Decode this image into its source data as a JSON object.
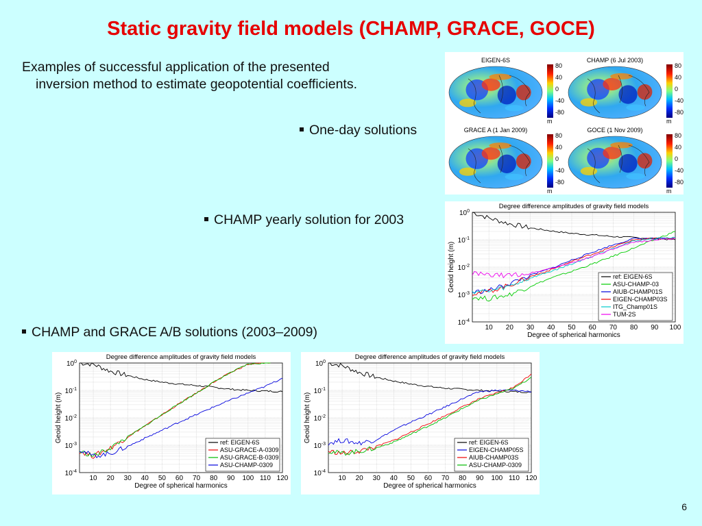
{
  "slide": {
    "title": "Static gravity field models (CHAMP, GRACE, GOCE)",
    "intro_line1": "Examples of successful application of the presented",
    "intro_line2": "inversion method to estimate geopotential coefficients.",
    "bullet_one_day": "One-day solutions",
    "bullet_yearly": "CHAMP yearly solution for 2003",
    "bullet_champ_grace": "CHAMP and GRACE A/B solutions (2003–2009)",
    "page_number": "6"
  },
  "maps": {
    "titles": [
      "EIGEN-6S",
      "CHAMP (6 Jul 2003)",
      "GRACE A (1 Jan 2009)",
      "GOCE (1 Nov 2009)"
    ],
    "colorbar_ticks": [
      "80",
      "40",
      "0",
      "-40",
      "-80"
    ],
    "colorbar_unit": "m"
  },
  "chart_data": [
    {
      "type": "line",
      "title": "Degree difference amplitudes of gravity field models",
      "xlabel": "Degree of spherical harmonics",
      "ylabel": "Geoid height (m)",
      "xlim": [
        2,
        100
      ],
      "ylim_log10": [
        -4,
        0
      ],
      "log_y": true,
      "x_ticks": [
        10,
        20,
        30,
        40,
        50,
        60,
        70,
        80,
        90,
        100
      ],
      "y_tick_exponents": [
        0,
        -1,
        -2,
        -3,
        -4
      ],
      "y_tick_base": "10",
      "legend_position": "lower-right",
      "grid": true,
      "series": [
        {
          "name": "ref: EIGEN-6S",
          "color": "#000000",
          "x": [
            2,
            10,
            20,
            30,
            40,
            50,
            60,
            70,
            80,
            90,
            100
          ],
          "y": [
            1.0,
            0.62,
            0.38,
            0.27,
            0.21,
            0.17,
            0.15,
            0.13,
            0.12,
            0.11,
            0.1
          ]
        },
        {
          "name": "ASU-CHAMP-03",
          "color": "#00cc00",
          "x": [
            2,
            10,
            20,
            30,
            40,
            50,
            60,
            70,
            80,
            90,
            100
          ],
          "y": [
            0.0008,
            0.0007,
            0.001,
            0.002,
            0.004,
            0.007,
            0.013,
            0.025,
            0.05,
            0.1,
            0.2
          ]
        },
        {
          "name": "AIUB-CHAMP01S",
          "color": "#0000dd",
          "x": [
            2,
            10,
            20,
            30,
            40,
            50,
            60,
            70,
            80,
            90,
            100
          ],
          "y": [
            0.0012,
            0.0014,
            0.0025,
            0.005,
            0.009,
            0.018,
            0.035,
            0.065,
            0.11,
            0.11,
            0.11
          ]
        },
        {
          "name": "EIGEN-CHAMP03S",
          "color": "#ee0000",
          "x": [
            2,
            10,
            20,
            30,
            40,
            50,
            60,
            70,
            80,
            90,
            100
          ],
          "y": [
            0.0011,
            0.0013,
            0.0022,
            0.0045,
            0.008,
            0.016,
            0.03,
            0.055,
            0.1,
            0.11,
            0.11
          ]
        },
        {
          "name": "ITG_Champ01S",
          "color": "#00cccc",
          "x": [
            2,
            10,
            20,
            30,
            40,
            50,
            60,
            70,
            80,
            90,
            100
          ],
          "y": [
            0.0013,
            0.0013,
            0.002,
            0.004,
            0.007,
            0.013,
            0.025,
            0.05,
            0.09,
            0.11,
            0.12
          ]
        },
        {
          "name": "TUM-2S",
          "color": "#ee00ee",
          "x": [
            2,
            10,
            20,
            30,
            40,
            50,
            60,
            70,
            80,
            90,
            100
          ],
          "y": [
            0.006,
            0.005,
            0.005,
            0.006,
            0.009,
            0.014,
            0.025,
            0.045,
            0.08,
            0.1,
            0.11
          ]
        }
      ]
    },
    {
      "type": "line",
      "title": "Degree difference amplitudes of gravity field models",
      "xlabel": "Degree of spherical harmonics",
      "ylabel": "Geoid height (m)",
      "xlim": [
        2,
        120
      ],
      "ylim_log10": [
        -4,
        0
      ],
      "log_y": true,
      "x_ticks": [
        10,
        20,
        30,
        40,
        50,
        60,
        70,
        80,
        90,
        100,
        110,
        120
      ],
      "y_tick_exponents": [
        0,
        -1,
        -2,
        -3,
        -4
      ],
      "y_tick_base": "10",
      "legend_position": "lower-right",
      "grid": true,
      "series": [
        {
          "name": "ref: EIGEN-6S",
          "color": "#000000",
          "x": [
            2,
            10,
            20,
            30,
            40,
            50,
            60,
            70,
            80,
            90,
            100,
            110,
            120
          ],
          "y": [
            1.0,
            0.9,
            0.5,
            0.35,
            0.25,
            0.2,
            0.17,
            0.15,
            0.13,
            0.11,
            0.1,
            0.095,
            0.09
          ]
        },
        {
          "name": "ASU-GRACE-A-0309",
          "color": "#ee0000",
          "x": [
            2,
            10,
            20,
            30,
            40,
            50,
            60,
            70,
            80,
            90,
            100,
            110,
            113
          ],
          "y": [
            0.0006,
            0.0004,
            0.0008,
            0.002,
            0.005,
            0.013,
            0.033,
            0.08,
            0.2,
            0.45,
            0.9,
            1.0,
            1.0
          ]
        },
        {
          "name": "ASU-GRACE-B-0309",
          "color": "#00bb00",
          "x": [
            2,
            10,
            20,
            30,
            40,
            50,
            60,
            70,
            80,
            90,
            100,
            110,
            113
          ],
          "y": [
            0.0006,
            0.0004,
            0.0008,
            0.002,
            0.005,
            0.013,
            0.033,
            0.08,
            0.2,
            0.45,
            0.9,
            1.0,
            1.0
          ]
        },
        {
          "name": "ASU-CHAMP-0309",
          "color": "#0000dd",
          "x": [
            2,
            10,
            20,
            30,
            40,
            50,
            60,
            70,
            80,
            90,
            100,
            110,
            120
          ],
          "y": [
            0.0007,
            0.0004,
            0.0005,
            0.0009,
            0.0018,
            0.0035,
            0.007,
            0.013,
            0.025,
            0.045,
            0.08,
            0.14,
            0.28
          ]
        }
      ]
    },
    {
      "type": "line",
      "title": "Degree difference amplitudes of gravity field models",
      "xlabel": "Degree of spherical harmonics",
      "ylabel": "Geoid height (m)",
      "xlim": [
        2,
        120
      ],
      "ylim_log10": [
        -4,
        0
      ],
      "log_y": true,
      "x_ticks": [
        10,
        20,
        30,
        40,
        50,
        60,
        70,
        80,
        90,
        100,
        110,
        120
      ],
      "y_tick_exponents": [
        0,
        -1,
        -2,
        -3,
        -4
      ],
      "y_tick_base": "10",
      "legend_position": "lower-right",
      "grid": true,
      "series": [
        {
          "name": "ref: EIGEN-6S",
          "color": "#000000",
          "x": [
            2,
            10,
            20,
            30,
            40,
            50,
            60,
            70,
            80,
            90,
            100,
            110,
            120
          ],
          "y": [
            1.0,
            0.8,
            0.45,
            0.3,
            0.22,
            0.17,
            0.14,
            0.12,
            0.11,
            0.1,
            0.095,
            0.09,
            0.085
          ]
        },
        {
          "name": "EIGEN-CHAMP05S",
          "color": "#0000dd",
          "x": [
            2,
            10,
            20,
            30,
            40,
            50,
            60,
            70,
            80,
            90,
            100,
            110,
            120
          ],
          "y": [
            0.0012,
            0.0015,
            0.0012,
            0.0016,
            0.0035,
            0.007,
            0.013,
            0.025,
            0.05,
            0.09,
            0.1,
            0.1,
            0.09
          ]
        },
        {
          "name": "AIUB-CHAMP03S",
          "color": "#ee0000",
          "x": [
            2,
            10,
            20,
            30,
            40,
            50,
            60,
            70,
            80,
            90,
            100,
            110,
            120
          ],
          "y": [
            0.0006,
            0.0005,
            0.0006,
            0.0009,
            0.0015,
            0.003,
            0.006,
            0.012,
            0.025,
            0.05,
            0.08,
            0.13,
            0.4
          ]
        },
        {
          "name": "ASU-CHAMP-0309",
          "color": "#00bb00",
          "x": [
            2,
            10,
            20,
            30,
            40,
            50,
            60,
            70,
            80,
            90,
            100,
            110,
            120
          ],
          "y": [
            0.0006,
            0.0005,
            0.0006,
            0.0008,
            0.0013,
            0.0025,
            0.005,
            0.01,
            0.022,
            0.045,
            0.075,
            0.12,
            0.3
          ]
        }
      ]
    }
  ]
}
